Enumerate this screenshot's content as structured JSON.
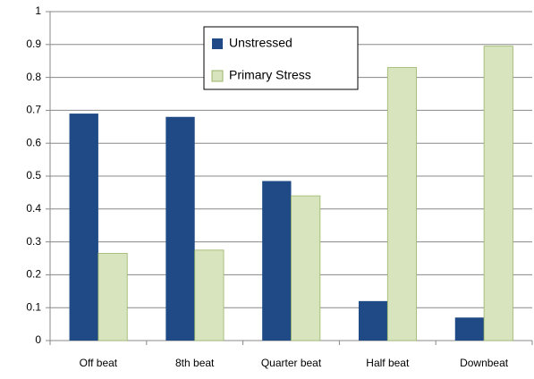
{
  "chart_data": {
    "type": "bar",
    "categories": [
      "Off beat",
      "8th beat",
      "Quarter beat",
      "Half beat",
      "Downbeat"
    ],
    "series": [
      {
        "name": "Unstressed",
        "color": "#1f4a85",
        "values": [
          0.69,
          0.68,
          0.485,
          0.12,
          0.07
        ]
      },
      {
        "name": "Primary Stress",
        "color": "#d7e4bd",
        "values": [
          0.265,
          0.275,
          0.44,
          0.83,
          0.895
        ]
      }
    ],
    "ylim": [
      0,
      1
    ],
    "yticks": [
      0,
      0.1,
      0.2,
      0.3,
      0.4,
      0.5,
      0.6,
      0.7,
      0.8,
      0.9,
      1
    ],
    "grid": true
  }
}
